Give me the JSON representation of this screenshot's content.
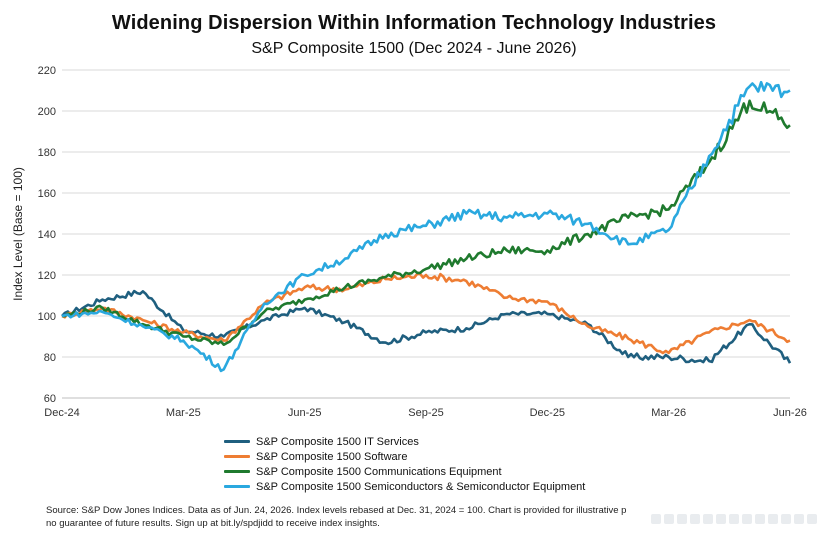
{
  "chart_data": {
    "type": "line",
    "title": "Widening Dispersion Within Information Technology Industries",
    "subtitle": "S&P Composite 1500 (Dec 2024 - June 2026)",
    "xlabel": "",
    "ylabel": "Index Level (Base = 100)",
    "ylim": [
      60,
      220
    ],
    "yticks": [
      60,
      80,
      100,
      120,
      140,
      160,
      180,
      200,
      220
    ],
    "xticks": [
      "Dec-24",
      "Mar-25",
      "Jun-25",
      "Sep-25",
      "Dec-25",
      "Mar-26",
      "Jun-26"
    ],
    "grid": "horizontal",
    "legend": "bottom",
    "x": [
      "Dec-24",
      "Jan-25",
      "Feb-25",
      "Mar-25",
      "Apr-25",
      "May-25",
      "Jun-25",
      "Jul-25",
      "Aug-25",
      "Sep-25",
      "Oct-25",
      "Nov-25",
      "Dec-25",
      "Jan-26",
      "Feb-26",
      "Mar-26",
      "Apr-26",
      "May-26",
      "Jun-26"
    ],
    "series": [
      {
        "name": "S&P Composite 1500 IT Services",
        "color": "#1f5f7f",
        "values": [
          100,
          108,
          112,
          93,
          90,
          98,
          104,
          97,
          87,
          92,
          94,
          101,
          101,
          96,
          80,
          80,
          78,
          96,
          77
        ]
      },
      {
        "name": "S&P Composite 1500 Software",
        "color": "#ee7d33",
        "values": [
          100,
          104,
          98,
          92,
          88,
          106,
          114,
          113,
          118,
          120,
          117,
          109,
          107,
          95,
          89,
          82,
          92,
          98,
          88
        ]
      },
      {
        "name": "S&P Composite 1500 Communications Equipment",
        "color": "#1f7a2e",
        "values": [
          100,
          104,
          96,
          90,
          86,
          102,
          108,
          114,
          119,
          123,
          128,
          132,
          132,
          140,
          148,
          152,
          175,
          205,
          193
        ]
      },
      {
        "name": "S&P Composite 1500 Semiconductors & Semiconductor Equipment",
        "color": "#2aa8df",
        "values": [
          100,
          102,
          95,
          88,
          74,
          106,
          120,
          128,
          140,
          144,
          150,
          148,
          150,
          145,
          135,
          142,
          178,
          212,
          210
        ]
      }
    ]
  },
  "legend_items": [
    "S&P Composite 1500 IT Services",
    "S&P Composite 1500 Software",
    "S&P Composite 1500 Communications Equipment",
    "S&P Composite 1500 Semiconductors & Semiconductor Equipment"
  ],
  "source": {
    "line1": "Source: S&P Dow Jones Indices. Data as of Jun. 24, 2026. Index levels rebased at Dec. 31, 2024 = 100. Chart is provided for illustrative p",
    "line2": "no guarantee of future results. Sign up at bit.ly/spdjidd to receive index insights."
  }
}
